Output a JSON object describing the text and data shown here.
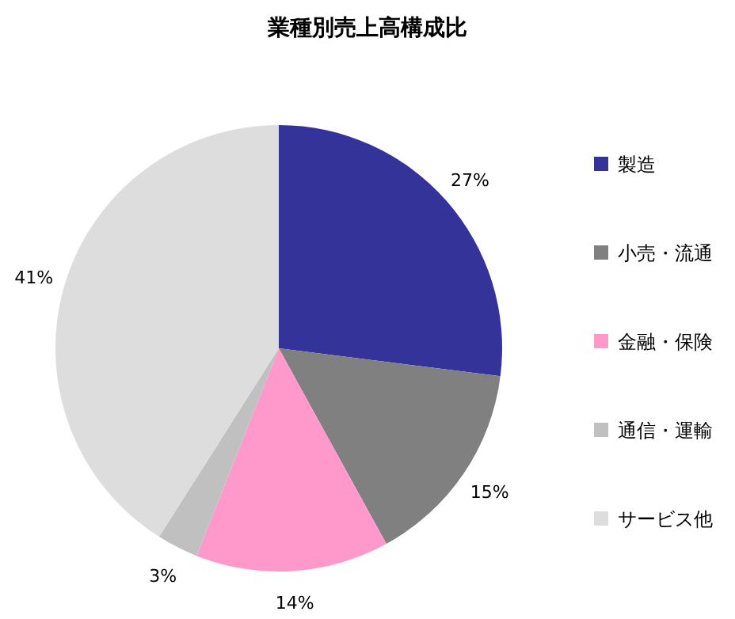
{
  "chart_data": {
    "type": "pie",
    "title": "業種別売上高構成比",
    "categories": [
      "製造",
      "小売・流通",
      "金融・保険",
      "通信・運輸",
      "サービス他"
    ],
    "values": [
      27,
      15,
      14,
      3,
      41
    ],
    "colors": [
      "#333399",
      "#808080",
      "#ff99cc",
      "#c0c0c0",
      "#dddddd"
    ],
    "value_labels": [
      "27%",
      "15%",
      "14%",
      "3%",
      "41%"
    ],
    "legend": "right"
  }
}
